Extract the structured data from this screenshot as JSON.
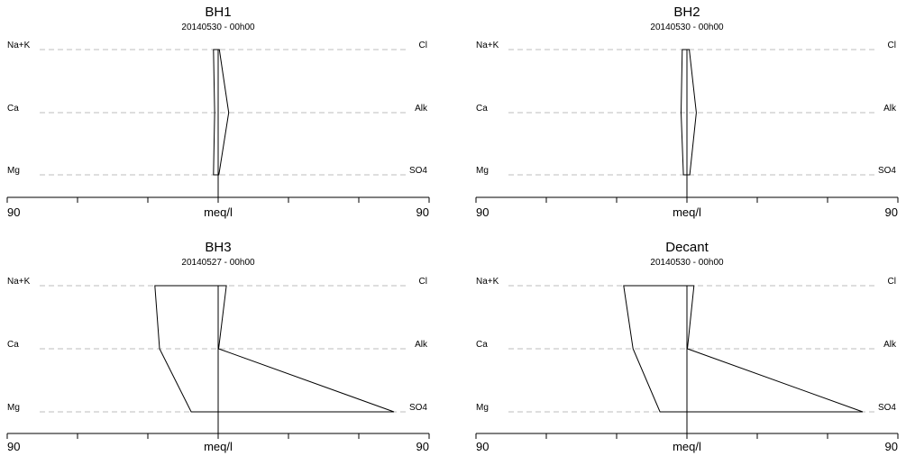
{
  "chart_data": [
    {
      "type": "stiff",
      "title": "BH1",
      "subtitle": "20140530 - 00h00",
      "xlabel": "meq/l",
      "x_tick_labels": [
        "90",
        "90"
      ],
      "xlim": [
        -90,
        90
      ],
      "grid": true,
      "left_labels": [
        "Na+K",
        "Ca",
        "Mg"
      ],
      "right_labels": [
        "Cl",
        "Alk",
        "SO4"
      ],
      "cations": [
        2.0,
        1.5,
        2.0
      ],
      "anions": [
        0.5,
        4.5,
        0.3
      ]
    },
    {
      "type": "stiff",
      "title": "BH2",
      "subtitle": "20140530 - 00h00",
      "xlabel": "meq/l",
      "x_tick_labels": [
        "90",
        "90"
      ],
      "xlim": [
        -90,
        90
      ],
      "grid": true,
      "left_labels": [
        "Na+K",
        "Ca",
        "Mg"
      ],
      "right_labels": [
        "Cl",
        "Alk",
        "SO4"
      ],
      "cations": [
        2.0,
        2.5,
        1.5
      ],
      "anions": [
        1.0,
        4.0,
        1.2
      ]
    },
    {
      "type": "stiff",
      "title": "BH3",
      "subtitle": "20140527 - 00h00",
      "xlabel": "meq/l",
      "x_tick_labels": [
        "90",
        "90"
      ],
      "xlim": [
        -90,
        90
      ],
      "grid": true,
      "left_labels": [
        "Na+K",
        "Ca",
        "Mg"
      ],
      "right_labels": [
        "Cl",
        "Alk",
        "SO4"
      ],
      "cations": [
        27,
        25,
        11.5
      ],
      "anions": [
        3.5,
        0.2,
        75
      ]
    },
    {
      "type": "stiff",
      "title": "Decant",
      "subtitle": "20140530 - 00h00",
      "xlabel": "meq/l",
      "x_tick_labels": [
        "90",
        "90"
      ],
      "xlim": [
        -90,
        90
      ],
      "grid": true,
      "left_labels": [
        "Na+K",
        "Ca",
        "Mg"
      ],
      "right_labels": [
        "Cl",
        "Alk",
        "SO4"
      ],
      "cations": [
        27,
        23,
        11.5
      ],
      "anions": [
        3.0,
        0.2,
        75
      ]
    }
  ]
}
